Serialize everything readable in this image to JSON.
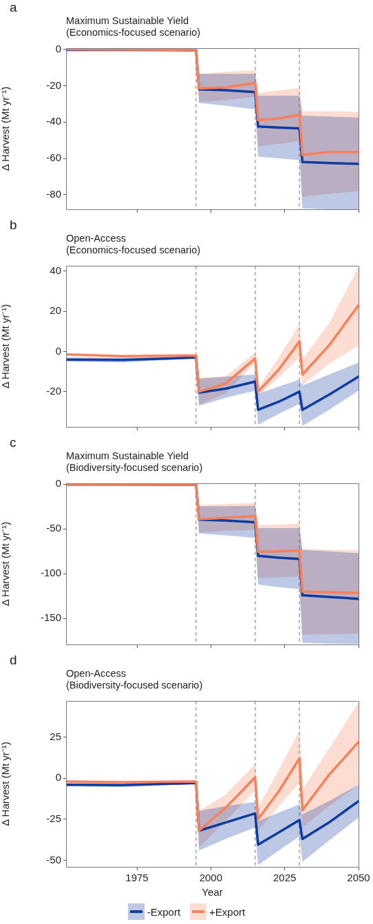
{
  "chart_data": [
    {
      "type": "line",
      "title": "Maximum Sustainable Yield",
      "subtitle": "(Economics-focused scenario)",
      "ylabel": "Δ Harvest (Mt yr⁻¹)",
      "annotations": [
        "a"
      ],
      "xlim": [
        1951,
        2050
      ],
      "xticks": [
        1975,
        2000,
        2025,
        2050
      ],
      "ylim": [
        -88,
        0.6
      ],
      "yticks": [
        0,
        -20,
        -40,
        -60,
        -80
      ],
      "tick_labels": "y",
      "grid": false,
      "legend": false,
      "marker": "none",
      "ref_lines": [
        {
          "axis": "x",
          "value": 1995,
          "color": "#aaaaaa",
          "line_style": "dashed"
        },
        {
          "axis": "x",
          "value": 2015,
          "color": "#aaaaaa",
          "line_style": "dashed"
        },
        {
          "axis": "x",
          "value": 2030,
          "color": "#aaaaaa",
          "line_style": "dashed"
        }
      ],
      "series": [
        {
          "color": "#0d3b9e",
          "x": [
            1951,
            1970,
            1995,
            1996,
            2005,
            2015,
            2016,
            2023,
            2030,
            2031,
            2040,
            2050
          ],
          "values": [
            -0.3,
            -0.3,
            -0.5,
            -22,
            -22.5,
            -23.5,
            -42.5,
            -43,
            -43.5,
            -62,
            -62.5,
            -63
          ],
          "lower": [
            -0.3,
            -0.3,
            -0.5,
            -29.5,
            -31,
            -33,
            -59,
            -60,
            -61,
            -87.5,
            -88,
            -88
          ],
          "upper": [
            -0.3,
            -0.3,
            -0.5,
            -13.5,
            -13.5,
            -13.5,
            -25.5,
            -25.5,
            -25.5,
            -36.5,
            -37,
            -37.5
          ]
        },
        {
          "color": "#f8805a",
          "x": [
            1951,
            1970,
            1995,
            1996,
            2005,
            2015,
            2016,
            2023,
            2030,
            2031,
            2040,
            2050
          ],
          "values": [
            0,
            -0.2,
            -0.3,
            -21.5,
            -21,
            -18.5,
            -39,
            -38,
            -36,
            -58,
            -56.5,
            -56.5
          ],
          "lower": [
            0,
            -0.2,
            -0.3,
            -29,
            -28,
            -26,
            -53.5,
            -52,
            -50.5,
            -81,
            -79.5,
            -78
          ],
          "upper": [
            0,
            -0.2,
            -0.3,
            -13.5,
            -12.5,
            -11.5,
            -24,
            -22.5,
            -21.5,
            -34,
            -34,
            -34.5
          ]
        }
      ]
    },
    {
      "type": "line",
      "title": "Open-Access",
      "subtitle": "(Economics-focused scenario)",
      "ylabel": "Δ Harvest (Mt yr⁻¹)",
      "annotations": [
        "b"
      ],
      "xlim": [
        1951,
        2050
      ],
      "xticks": [
        1975,
        2000,
        2025,
        2050
      ],
      "ylim": [
        -37.5,
        42.6
      ],
      "yticks": [
        -20,
        0,
        20,
        40
      ],
      "tick_labels": "y",
      "grid": false,
      "legend": false,
      "marker": "none",
      "ref_lines": [
        {
          "axis": "x",
          "value": 1995,
          "color": "#aaaaaa",
          "line_style": "dashed"
        },
        {
          "axis": "x",
          "value": 2015,
          "color": "#aaaaaa",
          "line_style": "dashed"
        },
        {
          "axis": "x",
          "value": 2030,
          "color": "#aaaaaa",
          "line_style": "dashed"
        }
      ],
      "series": [
        {
          "color": "#0d3b9e",
          "x": [
            1951,
            1970,
            1995,
            1996,
            2005,
            2015,
            2016,
            2023,
            2030,
            2031,
            2040,
            2050
          ],
          "values": [
            -4,
            -4.2,
            -3,
            -20.5,
            -18.5,
            -15,
            -29,
            -25,
            -20,
            -29,
            -21.5,
            -12.5
          ],
          "lower": [
            -5,
            -5.5,
            -3.5,
            -27,
            -23,
            -19.5,
            -36.5,
            -31,
            -26,
            -37,
            -29,
            -19.5
          ],
          "upper": [
            -3,
            -3,
            -2.5,
            -13.5,
            -12.5,
            -11.5,
            -21,
            -17.5,
            -14,
            -17,
            -11.5,
            -5.5
          ]
        },
        {
          "color": "#f8805a",
          "x": [
            1951,
            1970,
            1995,
            1996,
            2005,
            2015,
            2016,
            2023,
            2030,
            2031,
            2040,
            2050
          ],
          "values": [
            -1.5,
            -2.3,
            -2,
            -20,
            -16,
            -3.5,
            -20,
            -9,
            5,
            -11.5,
            3,
            23
          ],
          "lower": [
            -1.5,
            -2.3,
            -2,
            -26.5,
            -21,
            -5.5,
            -22,
            -13,
            -3,
            -17,
            -6,
            3
          ],
          "upper": [
            -1.5,
            -2.3,
            -2,
            -13,
            -12.5,
            -0.5,
            -18,
            -3,
            13.5,
            -4,
            14,
            42
          ]
        }
      ]
    },
    {
      "type": "line",
      "title": "Maximum Sustainable Yield",
      "subtitle": "(Biodiversity-focused scenario)",
      "ylabel": "Δ Harvest (Mt yr⁻¹)",
      "annotations": [
        "c"
      ],
      "xlim": [
        1951,
        2050
      ],
      "xticks": [
        1975,
        2000,
        2025,
        2050
      ],
      "ylim": [
        -179,
        1
      ],
      "yticks": [
        0,
        -50,
        -100,
        -150
      ],
      "tick_labels": "y",
      "grid": false,
      "legend": false,
      "marker": "none",
      "ref_lines": [
        {
          "axis": "x",
          "value": 1995,
          "color": "#aaaaaa",
          "line_style": "dashed"
        },
        {
          "axis": "x",
          "value": 2015,
          "color": "#aaaaaa",
          "line_style": "dashed"
        },
        {
          "axis": "x",
          "value": 2030,
          "color": "#aaaaaa",
          "line_style": "dashed"
        }
      ],
      "series": [
        {
          "color": "#0d3b9e",
          "x": [
            1951,
            1970,
            1995,
            1996,
            2005,
            2015,
            2016,
            2023,
            2030,
            2031,
            2040,
            2050
          ],
          "values": [
            -0.3,
            -0.3,
            -0.5,
            -39.5,
            -40.5,
            -42.5,
            -80,
            -82,
            -83.5,
            -124,
            -126,
            -128
          ],
          "lower": [
            -0.3,
            -0.3,
            -0.5,
            -55,
            -57,
            -60,
            -112,
            -115,
            -117,
            -177,
            -178,
            -178.5
          ],
          "upper": [
            -0.3,
            -0.3,
            -0.5,
            -24.5,
            -24.5,
            -24,
            -49,
            -49,
            -49,
            -73.5,
            -75,
            -77
          ]
        },
        {
          "color": "#f8805a",
          "x": [
            1951,
            1970,
            1995,
            1996,
            2005,
            2015,
            2016,
            2023,
            2030,
            2031,
            2040,
            2050
          ],
          "values": [
            0,
            -0.2,
            -0.3,
            -39,
            -37.5,
            -35.5,
            -75.5,
            -75,
            -74,
            -120,
            -120.5,
            -121.5
          ],
          "lower": [
            0,
            -0.2,
            -0.3,
            -54,
            -52,
            -51,
            -105,
            -104,
            -103,
            -168,
            -167.5,
            -167
          ],
          "upper": [
            0,
            -0.2,
            -0.3,
            -23.5,
            -22,
            -21,
            -46,
            -45,
            -44,
            -72,
            -73,
            -74
          ]
        }
      ]
    },
    {
      "type": "line",
      "title": "Open-Access",
      "subtitle": "(Biodiversity-focused scenario)",
      "xlabel": "Year",
      "ylabel": "Δ Harvest (Mt yr⁻¹)",
      "annotations": [
        "d"
      ],
      "xlim": [
        1951,
        2050
      ],
      "xticks": [
        1975,
        2000,
        2025,
        2050
      ],
      "ylim": [
        -54,
        47
      ],
      "yticks": [
        -50,
        -25,
        0,
        25
      ],
      "grid": false,
      "legend": "bottom",
      "marker": "none",
      "ref_lines": [
        {
          "axis": "x",
          "value": 1995,
          "color": "#aaaaaa",
          "line_style": "dashed"
        },
        {
          "axis": "x",
          "value": 2015,
          "color": "#aaaaaa",
          "line_style": "dashed"
        },
        {
          "axis": "x",
          "value": 2030,
          "color": "#aaaaaa",
          "line_style": "dashed"
        }
      ],
      "series": [
        {
          "name": "-Export",
          "color": "#0d3b9e",
          "x": [
            1951,
            1970,
            1995,
            1996,
            2005,
            2015,
            2016,
            2023,
            2030,
            2031,
            2040,
            2050
          ],
          "values": [
            -4,
            -4.2,
            -3,
            -32,
            -27,
            -21.5,
            -40.5,
            -33,
            -25.5,
            -37,
            -27,
            -14
          ],
          "lower": [
            -5,
            -5.5,
            -3.5,
            -44,
            -37,
            -30,
            -53,
            -44,
            -35.5,
            -51,
            -38,
            -24
          ],
          "upper": [
            -3,
            -3,
            -2.5,
            -20,
            -17,
            -14.5,
            -26,
            -21,
            -16,
            -22,
            -14,
            -4
          ]
        },
        {
          "name": "+Export",
          "color": "#f8805a",
          "x": [
            1951,
            1970,
            1995,
            1996,
            2005,
            2015,
            2016,
            2023,
            2030,
            2031,
            2040,
            2050
          ],
          "values": [
            -2,
            -2.5,
            -2,
            -32,
            -18,
            0.5,
            -25,
            -8,
            12,
            -19.5,
            2,
            22
          ],
          "lower": [
            -2,
            -2.5,
            -2,
            -42.5,
            -26,
            -7.5,
            -32,
            -17,
            -3,
            -30,
            -17,
            -4
          ],
          "upper": [
            -2,
            -2.5,
            -2,
            -20,
            -10,
            8.5,
            -18,
            5,
            29,
            -7,
            18,
            46
          ]
        }
      ]
    }
  ]
}
